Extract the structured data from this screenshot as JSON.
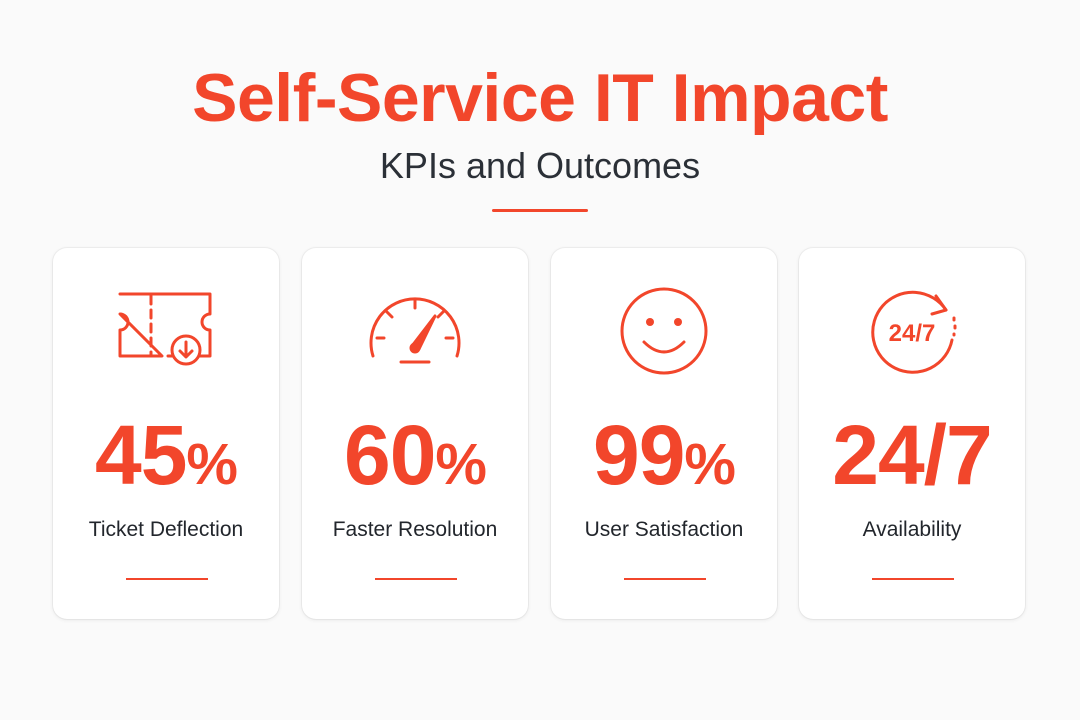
{
  "header": {
    "title": "Self-Service IT Impact",
    "subtitle": "KPIs and Outcomes"
  },
  "colors": {
    "accent": "#f2462b",
    "text": "#2b3037",
    "background": "#fafafa",
    "card": "#ffffff"
  },
  "cards": [
    {
      "icon": "ticket-download-icon",
      "number": "45",
      "unit": "%",
      "label": "Ticket Deflection"
    },
    {
      "icon": "speedometer-icon",
      "number": "60",
      "unit": "%",
      "label": "Faster Resolution"
    },
    {
      "icon": "smiley-face-icon",
      "number": "99",
      "unit": "%",
      "label": "User Satisfaction"
    },
    {
      "icon": "clock-24-7-icon",
      "number": "24/7",
      "unit": "",
      "label": "Availability",
      "icon_text": "24/7"
    }
  ]
}
